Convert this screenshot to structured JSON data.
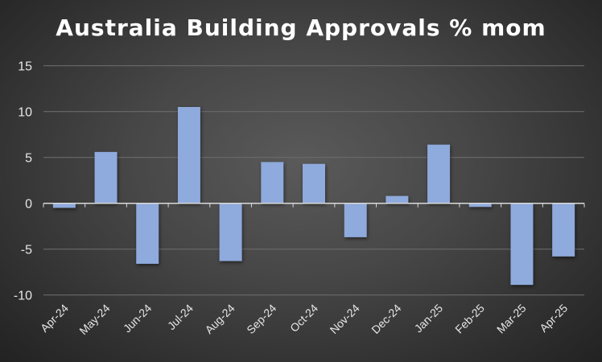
{
  "chart_data": {
    "type": "bar",
    "title": "Australia Building Approvals % mom",
    "xlabel": "",
    "ylabel": "",
    "categories": [
      "Apr-24",
      "May-24",
      "Jun-24",
      "Jul-24",
      "Aug-24",
      "Sep-24",
      "Oct-24",
      "Nov-24",
      "Dec-24",
      "Jan-25",
      "Feb-25",
      "Mar-25",
      "Apr-25"
    ],
    "values": [
      -0.5,
      5.6,
      -6.6,
      10.5,
      -6.3,
      4.5,
      4.3,
      -3.7,
      0.8,
      6.4,
      -0.4,
      -8.9,
      -5.8
    ],
    "ylim": [
      -10,
      15
    ],
    "yticks": [
      15,
      10,
      5,
      0,
      -5,
      -10
    ],
    "grid": true,
    "legend": "none",
    "colors": {
      "bar": "#8faadc",
      "grid": "#6a6a6a",
      "axis": "#d9d9d9",
      "text": "#e6e6e6"
    }
  }
}
